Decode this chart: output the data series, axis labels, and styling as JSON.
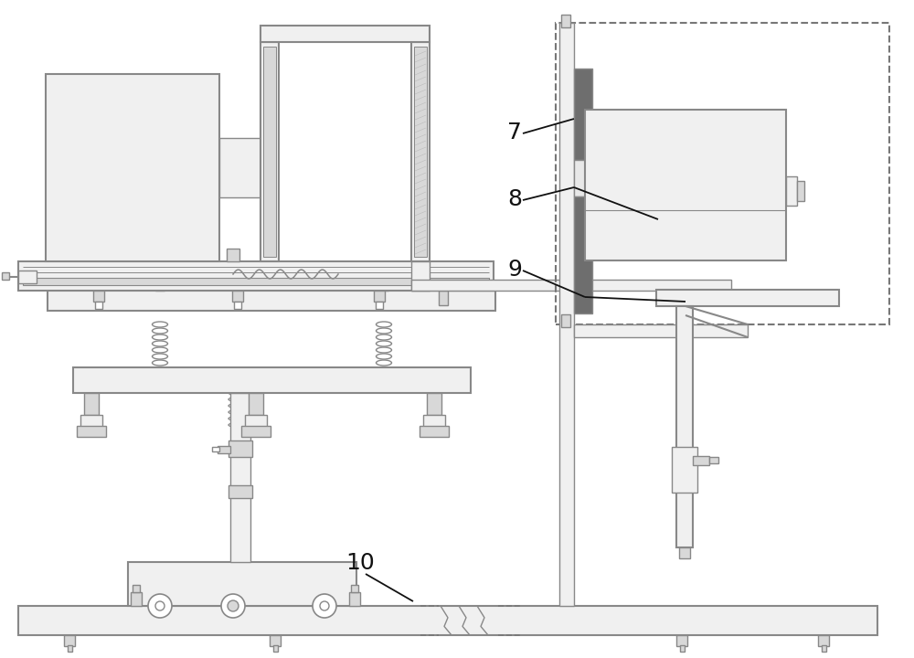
{
  "bg_color": "#ffffff",
  "lc": "#888888",
  "lc_dark": "#555555",
  "fill_light": "#f0f0f0",
  "fill_med": "#d8d8d8",
  "fill_dark": "#6e6e6e",
  "fill_green": "#c8d8c8",
  "dashed_color": "#777777",
  "label_color": "#111111",
  "label_fontsize": 18,
  "ann_lw": 1.3,
  "lw": 1.0,
  "lw2": 1.5
}
